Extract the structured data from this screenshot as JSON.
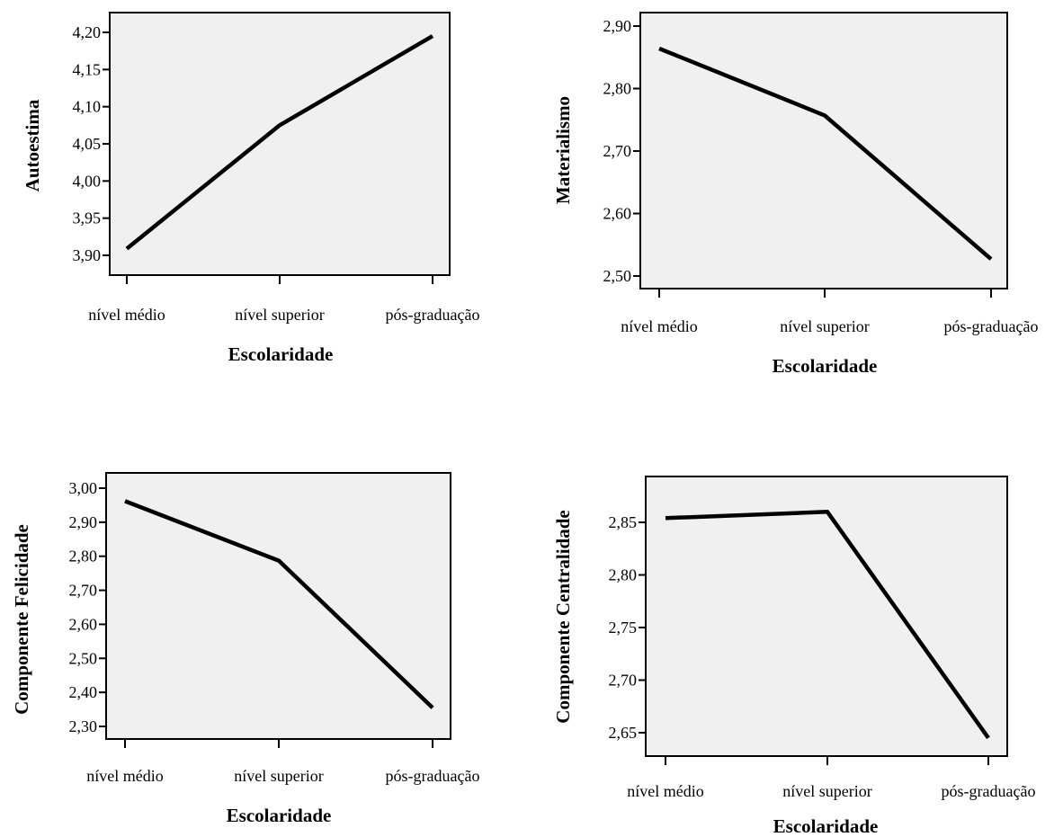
{
  "chart_data": [
    {
      "type": "line",
      "xlabel": "Escolaridade",
      "ylabel": "Autoestima",
      "categories": [
        "nível médio",
        "nível superior",
        "pós-graduação"
      ],
      "values": [
        3.909,
        4.075,
        4.195
      ],
      "ylim": [
        3.9,
        4.2
      ],
      "yticks": [
        "3,90",
        "3,95",
        "4,00",
        "4,05",
        "4,10",
        "4,15",
        "4,20"
      ],
      "grid": false
    },
    {
      "type": "line",
      "xlabel": "Escolaridade",
      "ylabel": "Materialismo",
      "categories": [
        "nível médio",
        "nível superior",
        "pós-graduação"
      ],
      "values": [
        2.864,
        2.757,
        2.527
      ],
      "ylim": [
        2.5,
        2.9
      ],
      "yticks": [
        "2,50",
        "2,60",
        "2,70",
        "2,80",
        "2,90"
      ],
      "grid": false
    },
    {
      "type": "line",
      "xlabel": "Escolaridade",
      "ylabel": "Componente Felicidade",
      "categories": [
        "nível médio",
        "nível superior",
        "pós-graduação"
      ],
      "values": [
        2.962,
        2.787,
        2.355
      ],
      "ylim": [
        2.3,
        3.0
      ],
      "yticks": [
        "2,30",
        "2,40",
        "2,50",
        "2,60",
        "2,70",
        "2,80",
        "2,90",
        "3,00"
      ],
      "grid": false
    },
    {
      "type": "line",
      "xlabel": "Escolaridade",
      "ylabel": "Componente Centralidade",
      "categories": [
        "nível médio",
        "nível superior",
        "pós-graduação"
      ],
      "values": [
        2.854,
        2.86,
        2.645
      ],
      "ylim": [
        2.65,
        2.85
      ],
      "yticks": [
        "2,65",
        "2,70",
        "2,75",
        "2,80",
        "2,85"
      ],
      "grid": false
    }
  ]
}
